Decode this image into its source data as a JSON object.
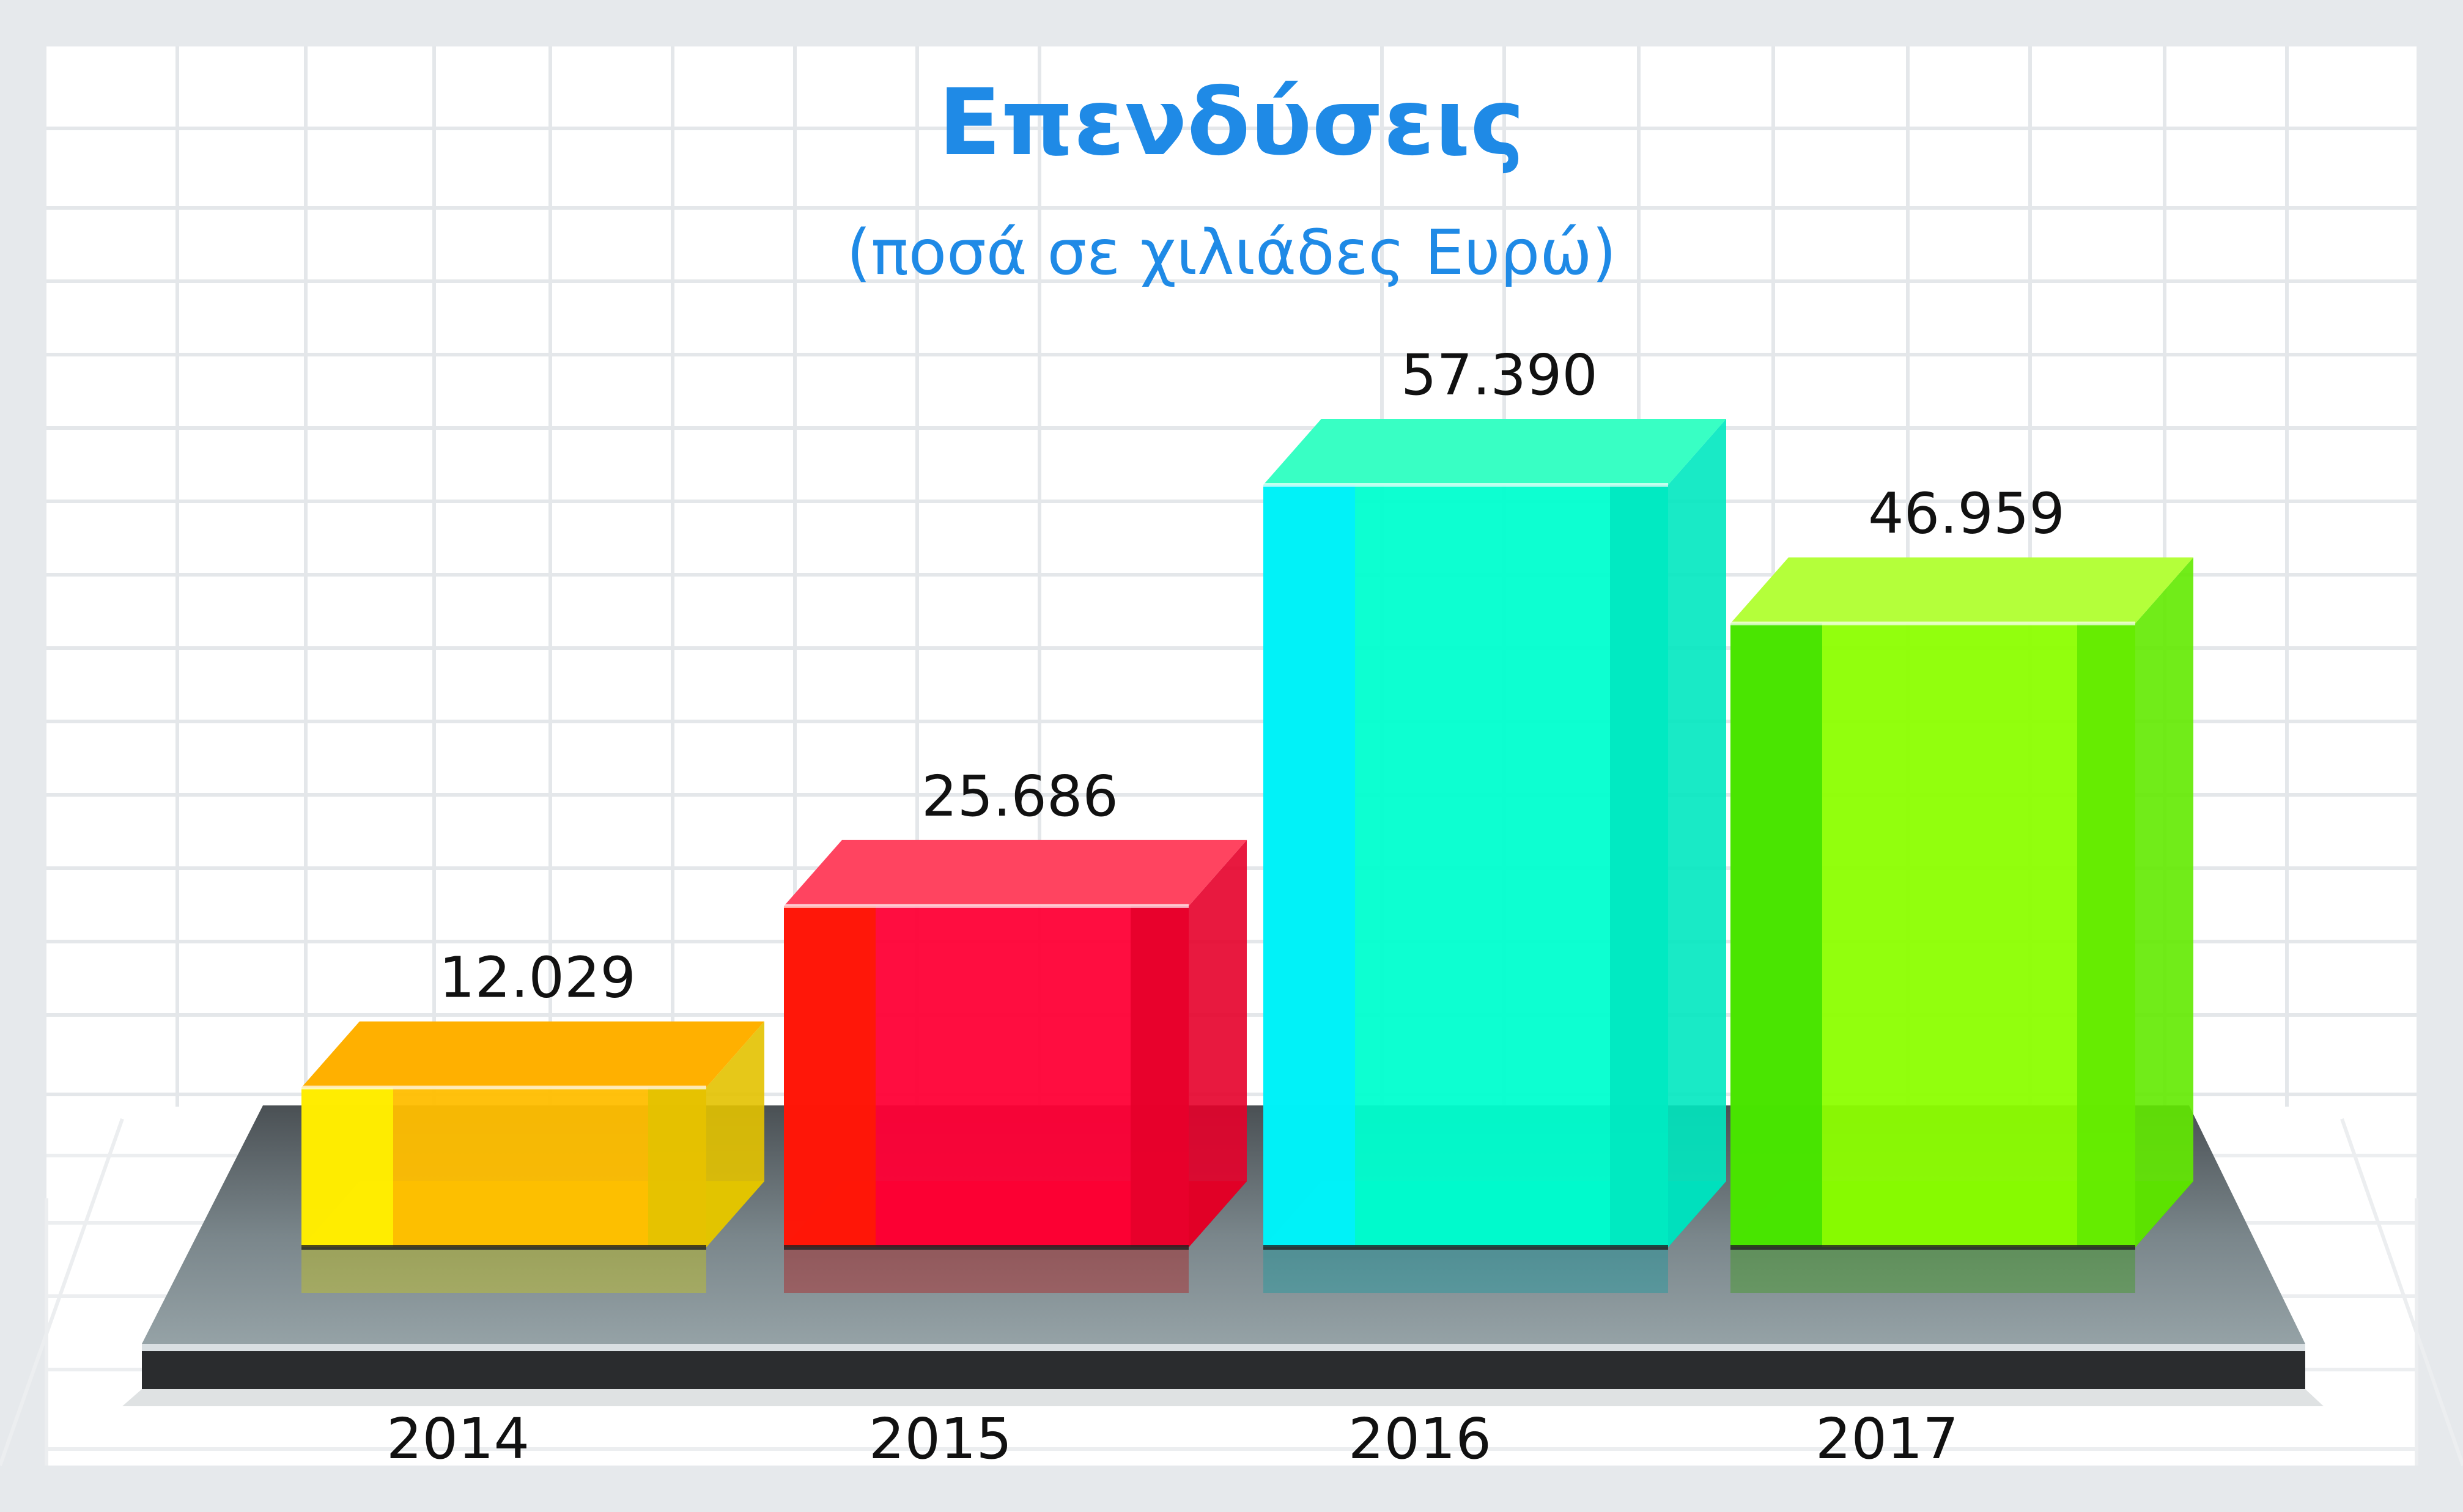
{
  "chart_data": {
    "type": "bar",
    "title": "Επενδύσεις",
    "subtitle": "(ποσά σε χιλιάδες Ευρώ)",
    "categories": [
      "2014",
      "2015",
      "2016",
      "2017"
    ],
    "values": [
      12029,
      25686,
      57390,
      46959
    ],
    "value_labels": [
      "12.029",
      "25.686",
      "57.390",
      "46.959"
    ],
    "ylim": [
      0,
      57390
    ],
    "grid": true,
    "legend": "none",
    "colors": {
      "title": "#1f8ae6",
      "background": "#e6e9ec",
      "panel": "#ffffff",
      "grid": "#e4e7ea",
      "platform_top": "#707c82",
      "platform_front": "#2a2c2e",
      "text": "#111111"
    },
    "bar_colors": [
      {
        "left": "#fff400",
        "face": "#ffbe00",
        "right": "#e3c200",
        "top": "#ffb000",
        "floor": "#d6d200"
      },
      {
        "left": "#ff1a00",
        "face": "#ff0036",
        "right": "#e6002a",
        "top": "#ff4460",
        "floor": "#b80000"
      },
      {
        "left": "#00f0ff",
        "face": "#00ffcf",
        "right": "#00e8c0",
        "top": "#38ffc4",
        "floor": "#009aa0"
      },
      {
        "left": "#3de000",
        "face": "#8cff00",
        "right": "#62ea00",
        "top": "#b4ff3a",
        "floor": "#2a9c00"
      }
    ]
  }
}
